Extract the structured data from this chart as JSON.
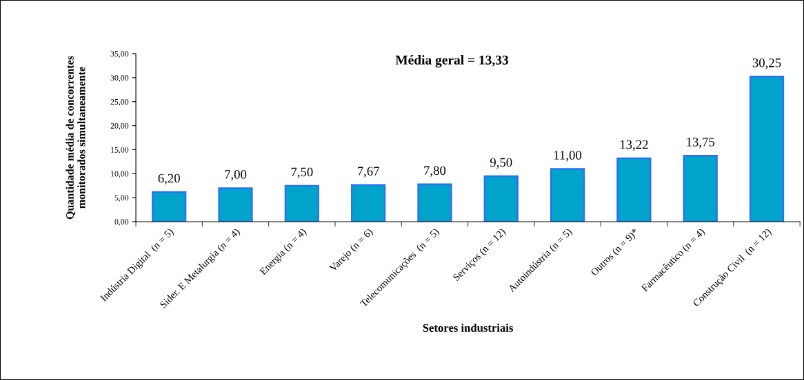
{
  "chart_data": {
    "type": "bar",
    "categories": [
      "Indústria Digital  (n = 5)",
      "Sider. E Metalurgia (n = 4)",
      "Energia (n = 4)",
      "Varejo (n = 6)",
      "Telecomunicações  (n = 5)",
      "Serviços (n = 12)",
      "Autoindústria (n = 5)",
      "Outros (n = 9)*",
      "Farmacêutico (n = 4)",
      "Construção Civil  (n = 12)"
    ],
    "values": [
      6.2,
      7.0,
      7.5,
      7.67,
      7.8,
      9.5,
      11.0,
      13.22,
      13.75,
      30.25
    ],
    "value_labels": [
      "6,20",
      "7,00",
      "7,50",
      "7,67",
      "7,80",
      "9,50",
      "11,00",
      "13,22",
      "13,75",
      "30,25"
    ],
    "color": "#00a3c9",
    "xlabel": "Setores industriais",
    "ylabel": "Quantidade média de concorrentes\nmonitorados simultaneamente",
    "annotations": [
      "Média geral = 13,33"
    ],
    "ylim": [
      0,
      35
    ],
    "yticks": [
      {
        "value": 0,
        "label": "0,00"
      },
      {
        "value": 5,
        "label": "5,00"
      },
      {
        "value": 10,
        "label": "10,00"
      },
      {
        "value": 15,
        "label": "15,00"
      },
      {
        "value": 20,
        "label": "20,00"
      },
      {
        "value": 25,
        "label": "25,00"
      },
      {
        "value": 30,
        "label": "30,00"
      },
      {
        "value": 35,
        "label": "35,00"
      }
    ],
    "grid": false
  }
}
